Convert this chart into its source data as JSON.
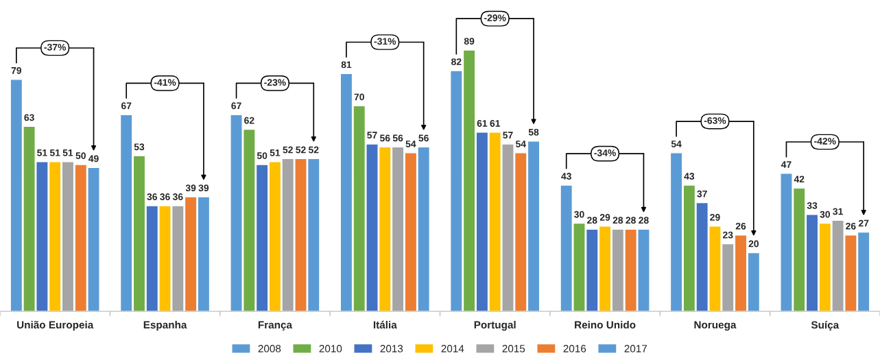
{
  "chart_data": {
    "type": "bar",
    "categories": [
      "União Europeia",
      "Espanha",
      "França",
      "Itália",
      "Portugal",
      "Reino Unido",
      "Noruega",
      "Suíça"
    ],
    "series": [
      {
        "name": "2008",
        "color": "#5b9bd5",
        "values": [
          79,
          67,
          67,
          81,
          82,
          43,
          54,
          47
        ]
      },
      {
        "name": "2010",
        "color": "#70ad47",
        "values": [
          63,
          53,
          62,
          70,
          89,
          30,
          43,
          42
        ]
      },
      {
        "name": "2013",
        "color": "#4472c4",
        "values": [
          51,
          36,
          50,
          57,
          61,
          28,
          37,
          33
        ]
      },
      {
        "name": "2014",
        "color": "#ffc000",
        "values": [
          51,
          36,
          51,
          56,
          61,
          29,
          29,
          30
        ]
      },
      {
        "name": "2015",
        "color": "#a5a5a5",
        "values": [
          51,
          36,
          52,
          56,
          57,
          28,
          23,
          31
        ]
      },
      {
        "name": "2016",
        "color": "#ed7d31",
        "values": [
          50,
          39,
          52,
          54,
          54,
          28,
          26,
          26
        ]
      },
      {
        "name": "2017",
        "color": "#5b9bd5",
        "values": [
          49,
          39,
          52,
          56,
          58,
          28,
          20,
          27
        ]
      }
    ],
    "data_labels": true,
    "legend": "bottom",
    "grid": false,
    "tick_labels": "x",
    "annotations": [
      "-37%",
      "-41%",
      "-23%",
      "-31%",
      "-29%",
      "-34%",
      "-63%",
      "-42%"
    ]
  }
}
